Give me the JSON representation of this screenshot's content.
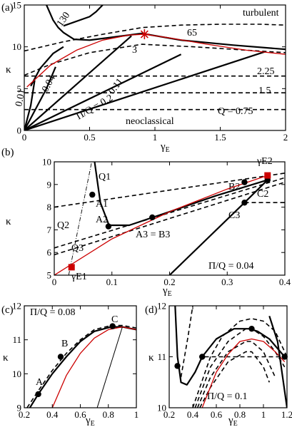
{
  "chart_data": [
    {
      "panel": "(a)",
      "type": "line",
      "xlabel": "γ",
      "xlabel_sub": "E",
      "ylabel": "κ",
      "xlim": [
        0,
        2
      ],
      "ylim": [
        0,
        15
      ],
      "xticks": [
        "0",
        "0.5",
        "1",
        "1.5",
        "2"
      ],
      "yticks": [
        "0",
        "5",
        "10",
        "15"
      ],
      "region_labels": [
        "turbulent",
        "neoclassical"
      ],
      "contour_labels_dashed": [
        "65",
        "3",
        "2.25",
        "1.5",
        "Q = 0.75"
      ],
      "contour_labels_solid": [
        "130",
        "0.01",
        "0.04",
        "0.11",
        "Π/Q = 0.2"
      ],
      "series": [
        {
          "style": "dashed",
          "x": [
            0,
            2
          ],
          "y": [
            2.5,
            2.5
          ]
        },
        {
          "style": "dashed",
          "x": [
            0,
            2
          ],
          "y": [
            4.5,
            4.5
          ]
        },
        {
          "style": "dashed",
          "x": [
            0,
            2
          ],
          "y": [
            6.5,
            6.5
          ]
        },
        {
          "style": "dashed",
          "x": [
            0,
            0.2,
            0.5,
            0.9,
            1.3,
            1.7,
            2
          ],
          "y": [
            6.6,
            7.9,
            9.3,
            10.3,
            10.0,
            9.6,
            9.3
          ]
        },
        {
          "style": "dashed",
          "x": [
            0,
            0.3,
            0.6,
            0.9,
            1.2,
            1.5,
            1.8,
            2
          ],
          "y": [
            9.5,
            10.6,
            11.5,
            12.3,
            12.6,
            12.7,
            12.7,
            12.6
          ]
        },
        {
          "style": "solid",
          "x": [
            0,
            1.84
          ],
          "y": [
            0,
            9.4
          ]
        },
        {
          "style": "solid",
          "x": [
            0,
            1.2
          ],
          "y": [
            0,
            9.1
          ]
        },
        {
          "style": "solid",
          "x": [
            0,
            0.82
          ],
          "y": [
            0,
            11.3
          ]
        },
        {
          "style": "solid",
          "x": [
            0,
            0.17,
            0.24
          ],
          "y": [
            0,
            5.0,
            7.6
          ]
        },
        {
          "style": "solid",
          "x": [
            0,
            0.05,
            0.08
          ],
          "y": [
            0,
            3.0,
            6.0
          ]
        },
        {
          "style": "solid",
          "x": [
            0.05,
            0.12,
            0.22,
            0.3
          ],
          "y": [
            5.3,
            7.4,
            9.2,
            10.0
          ]
        },
        {
          "style": "solid",
          "x": [
            0.17,
            0.22,
            0.26,
            0.3,
            0.38,
            0.5,
            0.7,
            0.9,
            1.2,
            1.6,
            2.0
          ],
          "y": [
            15,
            13.2,
            12.3,
            11.7,
            10.9,
            10.8,
            11.2,
            11.6,
            10.8,
            10.2,
            9.7
          ]
        },
        {
          "style": "solid",
          "x": [
            0.3,
            0.5,
            0.55,
            0.6
          ],
          "y": [
            12.5,
            13.6,
            14.2,
            15
          ]
        },
        {
          "style": "red",
          "x": [
            0.02,
            0.2,
            0.4,
            0.6,
            0.8,
            0.92,
            1.1,
            1.4,
            1.7,
            2.0
          ],
          "y": [
            5.2,
            7.8,
            9.6,
            10.8,
            11.4,
            11.5,
            11.1,
            10.3,
            9.6,
            9.1
          ]
        }
      ],
      "markers": [
        {
          "shape": "asterisk",
          "color": "#cc0000",
          "x": 0.92,
          "y": 11.5
        }
      ]
    },
    {
      "panel": "(b)",
      "type": "line",
      "xlabel": "γ",
      "xlabel_sub": "E",
      "ylabel": "κ",
      "xlim": [
        0,
        0.4
      ],
      "ylim": [
        5,
        10
      ],
      "xticks": [
        "0",
        "0.1",
        "0.2",
        "0.3",
        "0.4"
      ],
      "yticks": [
        "5",
        "6",
        "7",
        "8",
        "9",
        "10"
      ],
      "annotation": "Π/Q = 0.04",
      "labels": [
        "Q1",
        "Q2",
        "Q3",
        "A1",
        "A2",
        "A3 = B3",
        "B2",
        "C2",
        "C3",
        "γE1",
        "γE2"
      ],
      "series": [
        {
          "style": "dashed",
          "x": [
            0,
            0.4
          ],
          "y": [
            8.0,
            9.5
          ]
        },
        {
          "style": "dashed",
          "x": [
            0,
            0.4
          ],
          "y": [
            6.2,
            9.3
          ]
        },
        {
          "style": "dashed",
          "x": [
            0,
            0.4
          ],
          "y": [
            5.9,
            9.1
          ]
        },
        {
          "style": "dashed",
          "x": [
            0.33,
            0.4
          ],
          "y": [
            8.2,
            8.2
          ]
        },
        {
          "style": "solid",
          "x": [
            0.07,
            0.08,
            0.095,
            0.13,
            0.2,
            0.28,
            0.37
          ],
          "y": [
            10,
            8.2,
            7.2,
            7.2,
            7.8,
            8.5,
            9.2
          ]
        },
        {
          "style": "solid",
          "x": [
            0.2,
            0.33,
            0.37
          ],
          "y": [
            5.0,
            8.2,
            9.2
          ]
        },
        {
          "style": "red",
          "x": [
            0,
            0.1,
            0.2,
            0.3,
            0.37
          ],
          "y": [
            5.0,
            6.6,
            7.8,
            8.8,
            9.4
          ]
        },
        {
          "style": "dashdot",
          "x": [
            0.025,
            0.065
          ],
          "y": [
            5.0,
            10.0
          ]
        }
      ],
      "points": [
        {
          "label": "A1",
          "x": 0.066,
          "y": 8.55
        },
        {
          "label": "A2",
          "x": 0.094,
          "y": 7.15
        },
        {
          "label": "A3 = B3",
          "x": 0.17,
          "y": 7.55
        },
        {
          "label": "B2",
          "x": 0.33,
          "y": 9.1
        },
        {
          "label": "C2",
          "x": 0.37,
          "y": 9.2
        },
        {
          "label": "C3",
          "x": 0.33,
          "y": 8.2
        }
      ],
      "squares": [
        {
          "label": "γE1",
          "x": 0.03,
          "y": 5.35
        },
        {
          "label": "γE2",
          "x": 0.37,
          "y": 9.4
        }
      ]
    },
    {
      "panel": "(c)",
      "type": "line",
      "xlabel": "γ",
      "xlabel_sub": "E",
      "ylabel": "κ",
      "xlim": [
        0.2,
        1.0
      ],
      "ylim": [
        9,
        12
      ],
      "xticks": [
        "0.2",
        "0.4",
        "0.6",
        "0.8",
        "1"
      ],
      "yticks": [
        "9",
        "10",
        "11",
        "12"
      ],
      "annotation": "Π/Q = 0.08",
      "point_labels": [
        "A",
        "B",
        "C"
      ],
      "series": [
        {
          "style": "dashed",
          "x": [
            0.22,
            0.3,
            0.4,
            0.5,
            0.6,
            0.7,
            0.82,
            0.9,
            1.0
          ],
          "y": [
            9.0,
            9.5,
            10.1,
            10.6,
            11.0,
            11.3,
            11.42,
            11.42,
            11.35
          ]
        },
        {
          "style": "solid",
          "x": [
            0.24,
            0.3,
            0.4,
            0.5,
            0.6,
            0.7,
            0.82,
            0.9,
            1.0
          ],
          "y": [
            9.0,
            9.4,
            10.0,
            10.5,
            10.95,
            11.25,
            11.38,
            11.38,
            11.3
          ]
        },
        {
          "style": "red",
          "x": [
            0.4,
            0.5,
            0.6,
            0.7,
            0.8,
            0.9,
            1.0
          ],
          "y": [
            9.0,
            9.95,
            10.6,
            11.05,
            11.3,
            11.38,
            11.3
          ]
        },
        {
          "style": "thin",
          "x": [
            0.72,
            0.9
          ],
          "y": [
            9.0,
            11.38
          ]
        }
      ],
      "points": [
        {
          "label": "A",
          "x": 0.3,
          "y": 9.4
        },
        {
          "label": "B",
          "x": 0.46,
          "y": 10.5
        },
        {
          "label": "C",
          "x": 0.83,
          "y": 11.4
        }
      ]
    },
    {
      "panel": "(d)",
      "type": "line",
      "xlabel": "γ",
      "xlabel_sub": "E",
      "ylabel": "κ",
      "xlim": [
        0.2,
        1.2
      ],
      "ylim": [
        10,
        12
      ],
      "xticks": [
        "0.2",
        "0.4",
        "0.6",
        "0.8",
        "1",
        "1.2"
      ],
      "yticks": [
        "10",
        "11",
        "12"
      ],
      "annotation": "Π/Q = 0.1",
      "series": [
        {
          "style": "dashed",
          "x": [
            0.4,
            0.55,
            0.65,
            0.8,
            0.9,
            1.0,
            1.1,
            1.2
          ],
          "y": [
            10.0,
            11.0,
            11.4,
            11.7,
            11.75,
            11.7,
            11.5,
            11.0
          ]
        },
        {
          "style": "dashed",
          "x": [
            0.42,
            0.55,
            0.7,
            0.85,
            0.9,
            1.0,
            1.1,
            1.18
          ],
          "y": [
            10.0,
            10.8,
            11.3,
            11.55,
            11.55,
            11.4,
            11.1,
            10.8
          ]
        },
        {
          "style": "dashed",
          "x": [
            0.44,
            0.55,
            0.7,
            0.85,
            0.9,
            1.0,
            1.1
          ],
          "y": [
            10.0,
            10.6,
            11.1,
            11.3,
            11.3,
            11.1,
            10.6
          ]
        },
        {
          "style": "dashed",
          "x": [
            0.46,
            0.55,
            0.7,
            0.85,
            0.9,
            1.0,
            1.05
          ],
          "y": [
            10.0,
            10.4,
            10.9,
            11.1,
            11.1,
            10.8,
            10.5
          ]
        },
        {
          "style": "dashed",
          "x": [
            0.3,
            0.36,
            0.4
          ],
          "y": [
            10.6,
            11.4,
            12.0
          ]
        },
        {
          "style": "dashed",
          "x": [
            0.5,
            1.18
          ],
          "y": [
            11.0,
            11.0
          ]
        },
        {
          "style": "solid",
          "x": [
            0.25,
            0.27,
            0.3,
            0.35,
            0.42,
            0.48,
            0.6,
            0.75,
            0.88,
            0.95,
            1.05,
            1.18
          ],
          "y": [
            12.0,
            11.0,
            10.5,
            10.45,
            10.7,
            11.0,
            11.35,
            11.55,
            11.55,
            11.5,
            11.35,
            11.0
          ]
        },
        {
          "style": "red",
          "x": [
            0.48,
            0.6,
            0.7,
            0.8,
            0.9,
            1.0,
            1.1,
            1.18
          ],
          "y": [
            10.0,
            10.7,
            11.05,
            11.3,
            11.35,
            11.3,
            11.1,
            10.9
          ]
        },
        {
          "style": "solid",
          "x": [
            1.05,
            1.12,
            1.2
          ],
          "y": [
            11.8,
            11.3,
            10.0
          ]
        }
      ],
      "points": [
        {
          "x": 0.27,
          "y": 10.82
        },
        {
          "x": 0.48,
          "y": 11.0
        },
        {
          "x": 0.9,
          "y": 11.55
        },
        {
          "x": 1.18,
          "y": 11.0
        }
      ]
    }
  ],
  "colors": {
    "red": "#cc0000",
    "black": "#000000"
  }
}
